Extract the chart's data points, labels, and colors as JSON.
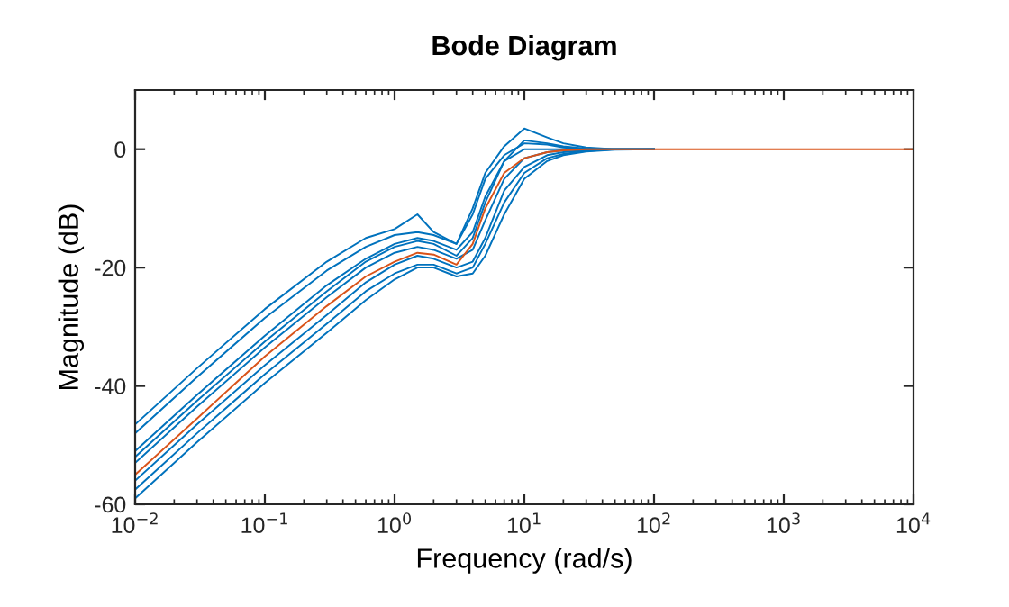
{
  "chart_data": {
    "type": "line",
    "title": "Bode Diagram",
    "xlabel": "Frequency (rad/s)",
    "ylabel": "Magnitude (dB)",
    "log": "x",
    "grid": false,
    "legend": false,
    "marker": "none",
    "line_style": "solid",
    "xlim": [
      0.01,
      10000
    ],
    "xticks": [
      {
        "value": 0.01,
        "label": "10$^{−2}$"
      },
      {
        "value": 0.1,
        "label": "10$^{−1}$"
      },
      {
        "value": 1,
        "label": "10$^{0}$"
      },
      {
        "value": 10,
        "label": "10$^{1}$"
      },
      {
        "value": 100,
        "label": "10$^{2}$"
      },
      {
        "value": 1000,
        "label": "10$^{3}$"
      },
      {
        "value": 10000,
        "label": "10$^{4}$"
      }
    ],
    "ylim": [
      -60,
      10
    ],
    "yticks": [
      -60,
      -40,
      -20,
      0
    ],
    "x": [
      0.01,
      0.03,
      0.1,
      0.3,
      0.6,
      1,
      1.5,
      2,
      3,
      4,
      5,
      7,
      10,
      15,
      20,
      30,
      50,
      100,
      1000,
      10000
    ],
    "series": [
      {
        "color": "#0072bd",
        "values": [
          -46.5,
          -37,
          -27,
          -19,
          -15,
          -13.5,
          -11,
          -14,
          -16,
          -10,
          -4,
          0.5,
          3.5,
          2,
          1,
          0.3,
          0,
          0,
          null,
          null
        ]
      },
      {
        "color": "#0072bd",
        "values": [
          -48,
          -38.5,
          -28.5,
          -20.5,
          -16.5,
          -14.5,
          -14,
          -14.5,
          -16,
          -11,
          -5,
          -1,
          1,
          0.8,
          0.3,
          0,
          0,
          0,
          null,
          null
        ]
      },
      {
        "color": "#0072bd",
        "values": [
          -51,
          -41.5,
          -31.5,
          -23,
          -18.5,
          -16,
          -15,
          -15.5,
          -17,
          -14,
          -8,
          -2,
          0,
          0,
          0,
          0,
          0,
          0,
          null,
          null
        ]
      },
      {
        "color": "#0072bd",
        "values": [
          -52,
          -42.5,
          -32.5,
          -24,
          -19,
          -16.5,
          -15.5,
          -16,
          -18,
          -15,
          -9,
          -2,
          1.5,
          1,
          0.5,
          0.1,
          0,
          0,
          null,
          null
        ]
      },
      {
        "color": "#0072bd",
        "values": [
          -53,
          -43.5,
          -33.5,
          -25,
          -20,
          -17.5,
          -16.5,
          -17,
          -18.5,
          -17,
          -12,
          -5,
          -1.5,
          -0.5,
          -0.2,
          0,
          0,
          0,
          null,
          null
        ]
      },
      {
        "color": "#0072bd",
        "values": [
          -56,
          -46.5,
          -36.5,
          -28,
          -22.5,
          -19.5,
          -18,
          -18.5,
          -20,
          -19,
          -15,
          -7,
          -3,
          -1,
          -0.5,
          -0.2,
          0,
          0,
          null,
          null
        ]
      },
      {
        "color": "#0072bd",
        "values": [
          -57.5,
          -48,
          -38,
          -29.5,
          -24,
          -21,
          -19.5,
          -19.5,
          -21,
          -20,
          -16,
          -9,
          -4,
          -1.5,
          -0.8,
          -0.3,
          0,
          0,
          null,
          null
        ]
      },
      {
        "color": "#0072bd",
        "values": [
          -59,
          -49.5,
          -39.5,
          -31,
          -25.5,
          -22,
          -20,
          -20,
          -21.5,
          -21,
          -18,
          -11,
          -5,
          -2,
          -1,
          -0.4,
          -0.1,
          0,
          null,
          null
        ]
      },
      {
        "color": "#d95319",
        "values": [
          -55,
          -45.5,
          -35,
          -26.5,
          -21.5,
          -19,
          -17.5,
          -17.8,
          -19.5,
          -16,
          -10,
          -4,
          -1.5,
          -0.5,
          -0.2,
          0,
          0,
          0,
          0,
          0
        ]
      }
    ]
  }
}
